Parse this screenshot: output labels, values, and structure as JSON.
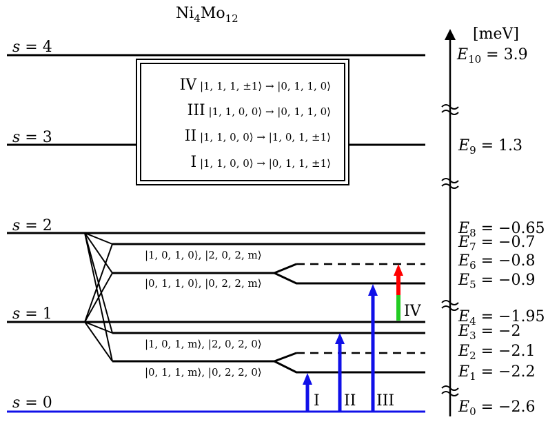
{
  "title": {
    "base": "Ni",
    "sub1": "4",
    "mid": "Mo",
    "sub2": "12"
  },
  "unit": "[meV]",
  "s_levels": [
    {
      "var": "s",
      "eq": " = 4"
    },
    {
      "var": "s",
      "eq": " = 3"
    },
    {
      "var": "s",
      "eq": " = 2"
    },
    {
      "var": "s",
      "eq": " = 1"
    },
    {
      "var": "s",
      "eq": " = 0"
    }
  ],
  "transitions_box": [
    {
      "roman": "IV",
      "text": "|1, 1, 1, ±1⟩ → |0, 1, 1, 0⟩"
    },
    {
      "roman": "III",
      "text": "|1, 1, 0, 0⟩ → |0, 1, 1, 0⟩"
    },
    {
      "roman": "II",
      "text": "|1, 1, 0, 0⟩ → |1, 0, 1, ±1⟩"
    },
    {
      "roman": "I",
      "text": "|1, 1, 0, 0⟩ → |0, 1, 1, ±1⟩"
    }
  ],
  "state_labels": [
    "|1, 0, 1, 0⟩, |2, 0, 2, m⟩",
    "|0, 1, 1, 0⟩, |0, 2, 2, m⟩",
    "|1, 0, 1, m⟩, |2, 0, 2, 0⟩",
    "|0, 1, 1, m⟩, |0, 2, 2, 0⟩"
  ],
  "energies": [
    {
      "sym": "E",
      "sub": "10",
      "val": " = 3.9"
    },
    {
      "sym": "E",
      "sub": "9",
      "val": " = 1.3"
    },
    {
      "sym": "E",
      "sub": "8",
      "val": " = −0.65"
    },
    {
      "sym": "E",
      "sub": "7",
      "val": " = −0.7"
    },
    {
      "sym": "E",
      "sub": "6",
      "val": " = −0.8"
    },
    {
      "sym": "E",
      "sub": "5",
      "val": " = −0.9"
    },
    {
      "sym": "E",
      "sub": "4",
      "val": " = −1.95"
    },
    {
      "sym": "E",
      "sub": "3",
      "val": " = −2"
    },
    {
      "sym": "E",
      "sub": "2",
      "val": " = −2.1"
    },
    {
      "sym": "E",
      "sub": "1",
      "val": " = −2.2"
    },
    {
      "sym": "E",
      "sub": "0",
      "val": " = −2.6"
    }
  ],
  "arrow_labels": [
    "I",
    "II",
    "III",
    "IV"
  ],
  "colors": {
    "ground_level": "#1010e8",
    "arrow_blue": "#1010e8",
    "arrow_red": "#ff0000",
    "arrow_green": "#22cc22",
    "line": "#000000"
  },
  "icons": [
    "axis-break-icon",
    "up-arrow-icon"
  ]
}
